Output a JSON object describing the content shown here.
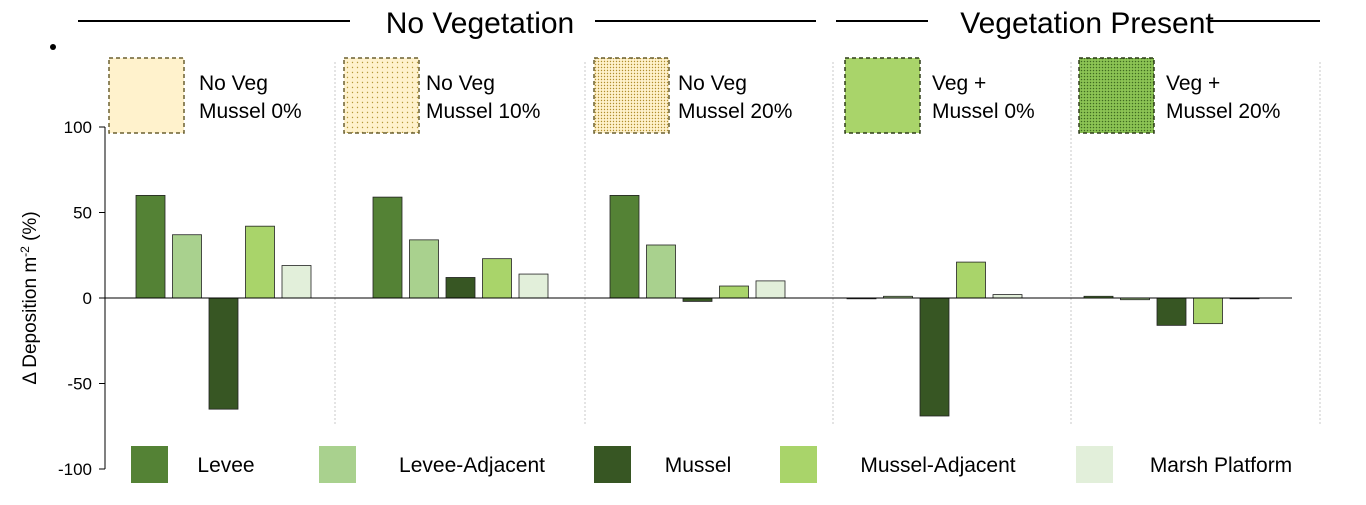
{
  "header": {
    "group_left": "No Vegetation",
    "group_right": "Vegetation Present"
  },
  "scenarios": [
    {
      "line1": "No Veg",
      "line2": "Mussel 0%",
      "swatch_color": "#fff2cc",
      "pattern": "none",
      "border": "#6b6030"
    },
    {
      "line1": "No Veg",
      "line2": "Mussel 10%",
      "swatch_color": "#fff2cc",
      "pattern": "dots-sparse",
      "border": "#6b6030"
    },
    {
      "line1": "No Veg",
      "line2": "Mussel 20%",
      "swatch_color": "#fff2cc",
      "pattern": "dots-dense",
      "border": "#6b6030"
    },
    {
      "line1": "Veg +",
      "line2": "Mussel 0%",
      "swatch_color": "#a9d46a",
      "pattern": "none",
      "border": "#2f3d1a"
    },
    {
      "line1": "Veg +",
      "line2": "Mussel 20%",
      "swatch_color": "#8cc454",
      "pattern": "dots-dark",
      "border": "#2f3d1a"
    }
  ],
  "chart_data": {
    "type": "bar",
    "ylabel": "Δ Deposition m",
    "ylabel_superscript": "-2",
    "ylabel_suffix": " (%)",
    "ylim": [
      -100,
      100
    ],
    "yticks": [
      "100",
      "50",
      "0",
      "-50",
      "-100"
    ],
    "categories": [
      "No Veg Mussel 0%",
      "No Veg Mussel 10%",
      "No Veg Mussel 20%",
      "Veg + Mussel 0%",
      "Veg + Mussel 20%"
    ],
    "series": [
      {
        "name": "Levee",
        "color": "#548235",
        "values": [
          60,
          59,
          60,
          0,
          1
        ]
      },
      {
        "name": "Levee-Adjacent",
        "color": "#a9d18e",
        "values": [
          37,
          34,
          31,
          1,
          -1
        ]
      },
      {
        "name": "Mussel",
        "color": "#375623",
        "values": [
          -65,
          12,
          -2,
          -69,
          -16
        ]
      },
      {
        "name": "Mussel-Adjacent",
        "color": "#a9d46a",
        "values": [
          42,
          23,
          7,
          21,
          -15
        ]
      },
      {
        "name": "Marsh Platform",
        "color": "#e2efda",
        "values": [
          19,
          14,
          10,
          2,
          0
        ]
      }
    ],
    "legend": {
      "position": "bottom"
    },
    "grid": false
  }
}
